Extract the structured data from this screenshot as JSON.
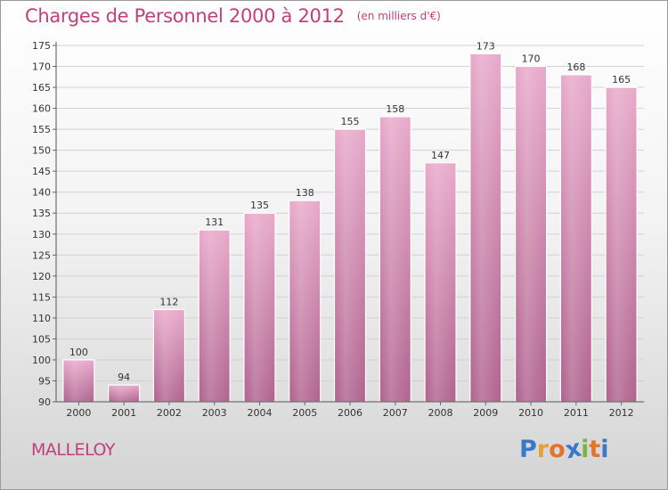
{
  "chart_data": {
    "type": "bar",
    "title": "Charges de Personnel 2000 à 2012",
    "subtitle": "(en milliers d'€)",
    "categories": [
      "2000",
      "2001",
      "2002",
      "2003",
      "2004",
      "2005",
      "2006",
      "2007",
      "2008",
      "2009",
      "2010",
      "2011",
      "2012"
    ],
    "values": [
      100,
      94,
      112,
      131,
      135,
      138,
      155,
      158,
      147,
      173,
      170,
      168,
      165
    ],
    "ylim": [
      90,
      175
    ],
    "yticks": [
      90,
      95,
      100,
      105,
      110,
      115,
      120,
      125,
      130,
      135,
      140,
      145,
      150,
      155,
      160,
      165,
      170,
      175
    ],
    "grid": true,
    "bar_color": "#c86f9c"
  },
  "town": "MALLELOY",
  "logo": {
    "letters": [
      "P",
      "r",
      "o",
      "x",
      "i",
      "t",
      "i"
    ],
    "colors": [
      "#3a78c8",
      "#e2a23a",
      "#e0762e",
      "#3a78c8",
      "#7cb342",
      "#e0762e",
      "#3a78c8"
    ]
  }
}
